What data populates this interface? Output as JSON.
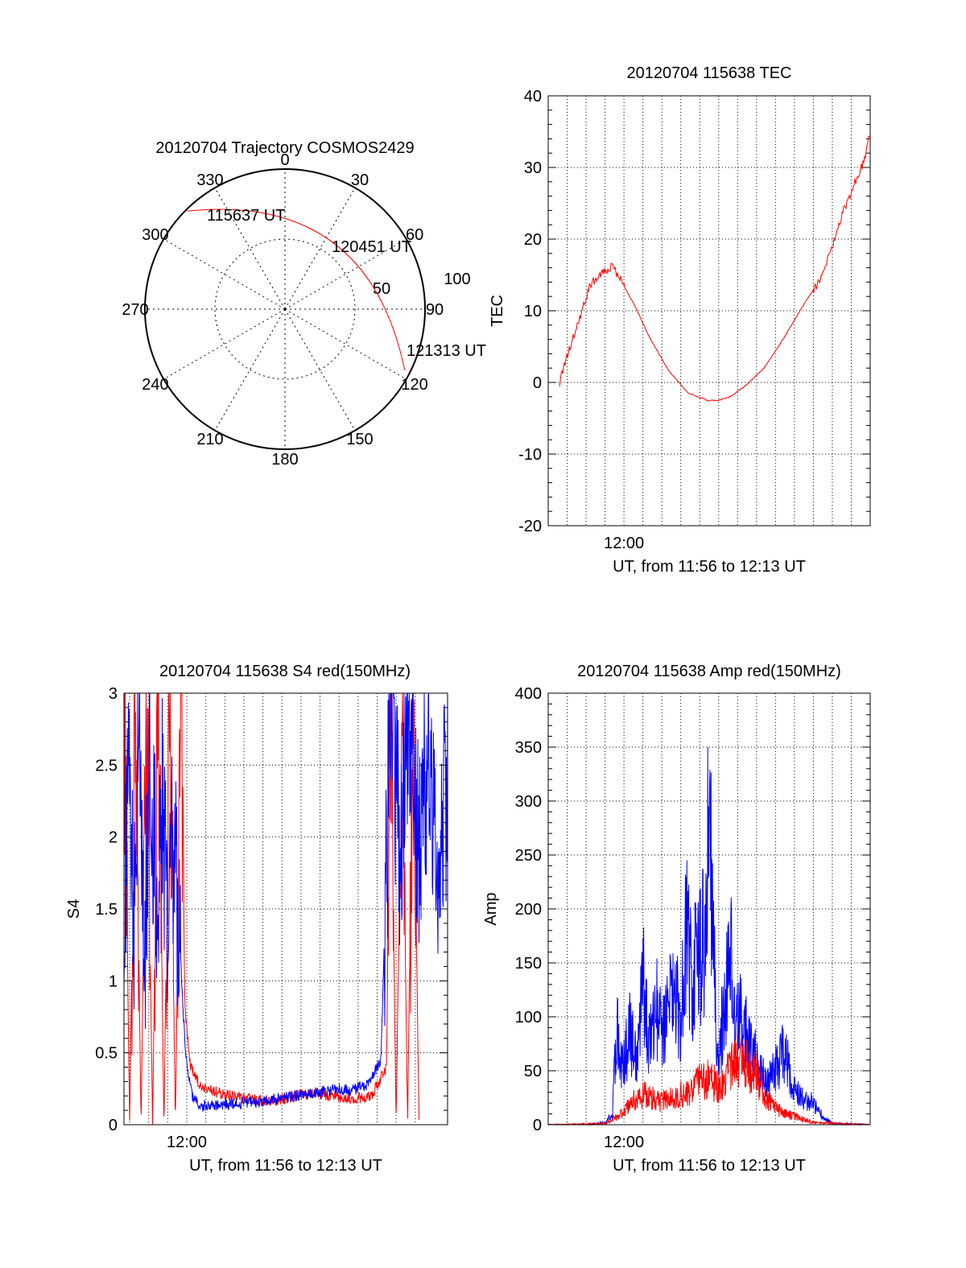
{
  "colors": {
    "red": "#ff0000",
    "blue": "#0000ff",
    "grid": "#000000",
    "axis": "#000000"
  },
  "chart_data": [
    {
      "id": "trajectory",
      "type": "polar",
      "title": "20120704 Trajectory COSMOS2429",
      "azimuth_labels": [
        "0",
        "30",
        "60",
        "90",
        "120",
        "150",
        "180",
        "210",
        "240",
        "270",
        "300",
        "330"
      ],
      "elevation_labels": [
        "50",
        "100"
      ],
      "trajectory_start_label": "115637 UT",
      "trajectory_mid_label": "120451 UT",
      "trajectory_end_label": "121313 UT",
      "trajectory": {
        "start_az": 315,
        "start_r": 0.99,
        "end_az": 117,
        "end_r": 0.96,
        "curvature": -0.9
      },
      "grid": true
    },
    {
      "id": "tec",
      "type": "line",
      "title": "20120704 115638 TEC",
      "ylabel": "TEC",
      "xlabel": "UT, from 11:56 to 12:13 UT",
      "x_tick_labels": [
        {
          "t": 4.0,
          "label": "12:00"
        }
      ],
      "xlim": [
        0,
        17.0
      ],
      "ylim": [
        -20,
        40
      ],
      "y_ticks": [
        -20,
        -10,
        0,
        10,
        20,
        30,
        40
      ],
      "grid": true,
      "series": [
        {
          "color": "red",
          "x": [
            0.6,
            1.2,
            1.6,
            2.2,
            2.6,
            3.2,
            3.4,
            3.8,
            4.6,
            5.4,
            6.4,
            7.4,
            8.4,
            9.0,
            9.6,
            10.4,
            11.4,
            12.4,
            13.4,
            14.4,
            15.0,
            15.6,
            16.2,
            16.7,
            17.0
          ],
          "y": [
            0,
            5.5,
            8.5,
            13.5,
            14.8,
            15.8,
            16.2,
            14.5,
            10.5,
            6,
            1.5,
            -1.5,
            -2.5,
            -2.5,
            -2,
            -0.5,
            2,
            6,
            10.5,
            14.5,
            19,
            24,
            28,
            31,
            35
          ]
        }
      ]
    },
    {
      "id": "s4",
      "type": "line",
      "title": "20120704 115638 S4 red(150MHz)",
      "ylabel": "S4",
      "xlabel": "UT, from 11:56 to 12:13 UT",
      "x_tick_labels": [
        {
          "t": 3.3,
          "label": "12:00"
        }
      ],
      "xlim": [
        0,
        17.0
      ],
      "ylim": [
        0,
        3
      ],
      "y_ticks": [
        0,
        0.5,
        1,
        1.5,
        2,
        2.5,
        3
      ],
      "grid": true,
      "series": [
        {
          "color": "red",
          "x": [
            0.0,
            0.3,
            0.6,
            0.9,
            1.2,
            1.5,
            1.8,
            2.1,
            2.4,
            2.7,
            3.0,
            3.2,
            3.5,
            4.0,
            5.0,
            6.0,
            7.0,
            8.0,
            9.0,
            10.0,
            11.0,
            12.0,
            13.0,
            13.8,
            14.0,
            14.3,
            14.6,
            14.9,
            15.2,
            15.5
          ],
          "y": [
            3,
            0,
            3,
            0,
            3,
            0,
            3,
            0,
            3,
            0,
            3,
            0.8,
            0.4,
            0.27,
            0.22,
            0.19,
            0.17,
            0.16,
            0.2,
            0.22,
            0.2,
            0.18,
            0.2,
            0.4,
            3,
            0,
            3,
            0,
            3,
            0
          ]
        },
        {
          "color": "blue",
          "x": [
            0.0,
            0.2,
            0.5,
            0.8,
            1.1,
            1.4,
            1.7,
            2.0,
            2.3,
            2.6,
            2.9,
            3.1,
            3.3,
            3.6,
            4.0,
            5.0,
            6.0,
            7.0,
            8.0,
            9.0,
            10.0,
            11.0,
            12.0,
            12.8,
            13.5,
            14.0,
            14.5,
            15.0,
            15.5,
            16.0,
            16.5,
            17.0
          ],
          "y": [
            1.0,
            2.5,
            1.4,
            2.8,
            1.3,
            2.6,
            1.6,
            2.2,
            1.2,
            2.0,
            1.4,
            0.8,
            0.4,
            0.2,
            0.13,
            0.14,
            0.15,
            0.16,
            0.18,
            0.2,
            0.22,
            0.25,
            0.24,
            0.28,
            0.45,
            2.8,
            2.0,
            2.9,
            1.9,
            2.6,
            1.8,
            2.4
          ]
        }
      ]
    },
    {
      "id": "amp",
      "type": "line",
      "title": "20120704 115638 Amp red(150MHz)",
      "ylabel": "Amp",
      "xlabel": "UT, from 11:56 to 12:13 UT",
      "x_tick_labels": [
        {
          "t": 4.0,
          "label": "12:00"
        }
      ],
      "xlim": [
        0,
        17.0
      ],
      "ylim": [
        0,
        400
      ],
      "y_ticks": [
        0,
        50,
        100,
        150,
        200,
        250,
        300,
        350,
        400
      ],
      "grid": true,
      "series": [
        {
          "color": "blue",
          "x": [
            0.0,
            2.0,
            3.0,
            3.4,
            3.6,
            3.9,
            4.3,
            4.7,
            5.0,
            5.3,
            5.7,
            6.0,
            6.5,
            7.0,
            7.3,
            7.6,
            7.9,
            8.2,
            8.5,
            8.8,
            9.0,
            9.3,
            9.6,
            9.9,
            10.3,
            10.6,
            11.0,
            11.5,
            12.0,
            12.5,
            13.0,
            13.5,
            14.0,
            14.5,
            15.0,
            17.0
          ],
          "y": [
            0,
            0,
            2,
            10,
            95,
            50,
            85,
            55,
            140,
            70,
            110,
            80,
            125,
            100,
            180,
            135,
            150,
            170,
            280,
            130,
            60,
            115,
            165,
            90,
            105,
            70,
            60,
            40,
            55,
            70,
            30,
            25,
            20,
            8,
            1,
            0
          ]
        },
        {
          "color": "red",
          "x": [
            0.0,
            3.0,
            3.5,
            4.0,
            4.5,
            5.0,
            5.5,
            6.0,
            6.5,
            7.0,
            7.5,
            8.0,
            8.5,
            9.0,
            9.5,
            10.0,
            10.5,
            11.0,
            11.5,
            12.0,
            12.5,
            13.0,
            13.5,
            14.0,
            17.0
          ],
          "y": [
            0,
            1,
            6,
            12,
            22,
            28,
            25,
            22,
            24,
            30,
            28,
            40,
            42,
            35,
            48,
            60,
            55,
            45,
            25,
            15,
            10,
            8,
            5,
            2,
            0
          ]
        }
      ]
    }
  ]
}
